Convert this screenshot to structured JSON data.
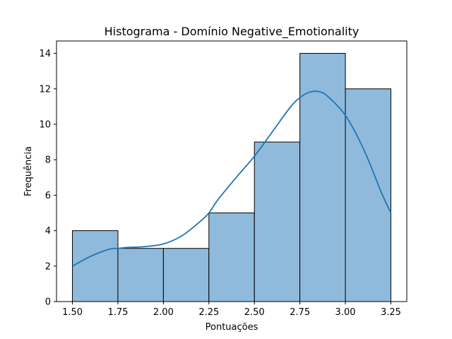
{
  "chart_data": {
    "type": "bar",
    "subtype": "histogram-with-kde",
    "title": "Histograma - Domínio Negative_Emotionality",
    "xlabel": "Pontuações",
    "ylabel": "Frequência",
    "bin_edges": [
      1.5,
      1.75,
      2.0,
      2.25,
      2.5,
      2.75,
      3.0,
      3.25
    ],
    "values": [
      4,
      3,
      3,
      5,
      9,
      14,
      12
    ],
    "xlim": [
      1.4125,
      3.3375
    ],
    "ylim": [
      0,
      14.7
    ],
    "xticks": [
      1.5,
      1.75,
      2.0,
      2.25,
      2.5,
      2.75,
      3.0,
      3.25
    ],
    "xtick_labels": [
      "1.50",
      "1.75",
      "2.00",
      "2.25",
      "2.50",
      "2.75",
      "3.00",
      "3.25"
    ],
    "yticks": [
      0,
      2,
      4,
      6,
      8,
      10,
      12,
      14
    ],
    "ytick_labels": [
      "0",
      "2",
      "4",
      "6",
      "8",
      "10",
      "12",
      "14"
    ],
    "kde": {
      "x": [
        1.5,
        1.6,
        1.7,
        1.75,
        1.8,
        1.9,
        2.0,
        2.1,
        2.2,
        2.25,
        2.3,
        2.4,
        2.5,
        2.6,
        2.7,
        2.75,
        2.8,
        2.85,
        2.9,
        3.0,
        3.1,
        3.2,
        3.25
      ],
      "y": [
        2.0,
        2.55,
        2.95,
        3.0,
        3.05,
        3.1,
        3.25,
        3.7,
        4.5,
        5.0,
        5.75,
        7.0,
        8.2,
        9.6,
        11.0,
        11.5,
        11.8,
        11.85,
        11.6,
        10.5,
        8.6,
        6.1,
        5.0
      ]
    },
    "grid": false,
    "colors": {
      "bar_fill": "#8fbadc",
      "bar_edge": "#000000",
      "kde_line": "#1f77b4"
    }
  }
}
